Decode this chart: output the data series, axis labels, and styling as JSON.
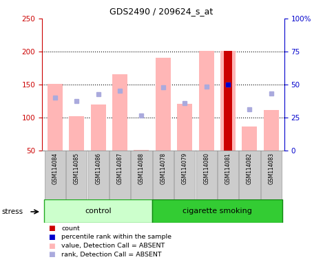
{
  "title": "GDS2490 / 209624_s_at",
  "samples": [
    "GSM114084",
    "GSM114085",
    "GSM114086",
    "GSM114087",
    "GSM114088",
    "GSM114078",
    "GSM114079",
    "GSM114080",
    "GSM114081",
    "GSM114082",
    "GSM114083"
  ],
  "groups": [
    "control",
    "control",
    "control",
    "control",
    "control",
    "cigarette smoking",
    "cigarette smoking",
    "cigarette smoking",
    "cigarette smoking",
    "cigarette smoking",
    "cigarette smoking"
  ],
  "value_absent": [
    151,
    102,
    120,
    166,
    51,
    191,
    121,
    201,
    201,
    86,
    111
  ],
  "rank_absent": [
    130,
    125,
    135,
    140,
    103,
    146,
    122,
    147,
    150,
    112,
    136
  ],
  "count_idx": 8,
  "count_val": 201,
  "percentile_val": 150,
  "ylim_left": [
    50,
    250
  ],
  "ylim_right": [
    0,
    100
  ],
  "yticks_left": [
    50,
    100,
    150,
    200,
    250
  ],
  "yticks_right": [
    0,
    25,
    50,
    75,
    100
  ],
  "ytick_labels_right": [
    "0",
    "25",
    "50",
    "75",
    "100%"
  ],
  "bar_color_absent": "#ffb6b6",
  "rank_color_absent": "#aaaadd",
  "count_color": "#cc0000",
  "percentile_color": "#0000cc",
  "control_color": "#ccffcc",
  "smoking_color": "#33cc33",
  "group_label_control": "control",
  "group_label_smoking": "cigarette smoking",
  "stress_label": "stress",
  "legend_labels": [
    "count",
    "percentile rank within the sample",
    "value, Detection Call = ABSENT",
    "rank, Detection Call = ABSENT"
  ],
  "legend_colors": [
    "#cc0000",
    "#0000cc",
    "#ffb6b6",
    "#aaaadd"
  ],
  "axis_left_color": "#cc0000",
  "axis_right_color": "#0000cc",
  "grid_dotted_vals": [
    100,
    150,
    200
  ],
  "bar_width": 0.7,
  "xlabelbox_color": "#cccccc",
  "xlabelbox_edge": "#999999"
}
